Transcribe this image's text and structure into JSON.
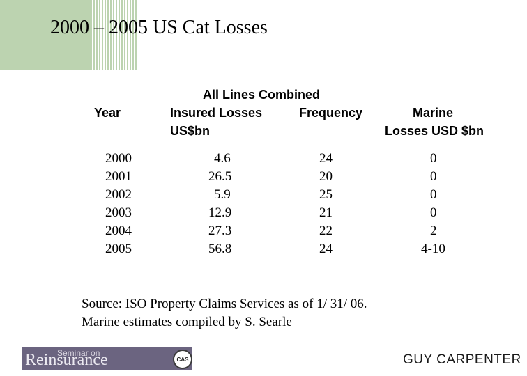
{
  "title": "2000 – 2005 US Cat Losses",
  "table": {
    "group_header": "All Lines Combined",
    "columns": {
      "year": "Year",
      "insured_line1": "Insured Losses",
      "insured_line2": "US$bn",
      "frequency": "Frequency",
      "marine_line1": "Marine",
      "marine_line2": "Losses USD $bn"
    },
    "rows": [
      {
        "year": "2000",
        "insured": "4.6",
        "frequency": "24",
        "marine": "0"
      },
      {
        "year": "2001",
        "insured": "26.5",
        "frequency": "20",
        "marine": "0"
      },
      {
        "year": "2002",
        "insured": "5.9",
        "frequency": "25",
        "marine": "0"
      },
      {
        "year": "2003",
        "insured": "12.9",
        "frequency": "21",
        "marine": "0"
      },
      {
        "year": "2004",
        "insured": "27.3",
        "frequency": "22",
        "marine": "2"
      },
      {
        "year": "2005",
        "insured": "56.8",
        "frequency": "24",
        "marine": "4-10"
      }
    ]
  },
  "source": {
    "line1": "Source:  ISO Property Claims Services as of 1/ 31/ 06.",
    "line2": "Marine estimates compiled by S. Searle"
  },
  "footer": {
    "logo_small": "Seminar on",
    "logo_big": "Reinsurance",
    "seal_text": "CAS",
    "brand": "GUY CARPENTER"
  },
  "colors": {
    "accent_green": "#bcd3b0",
    "logo_bar": "#6b6480"
  }
}
